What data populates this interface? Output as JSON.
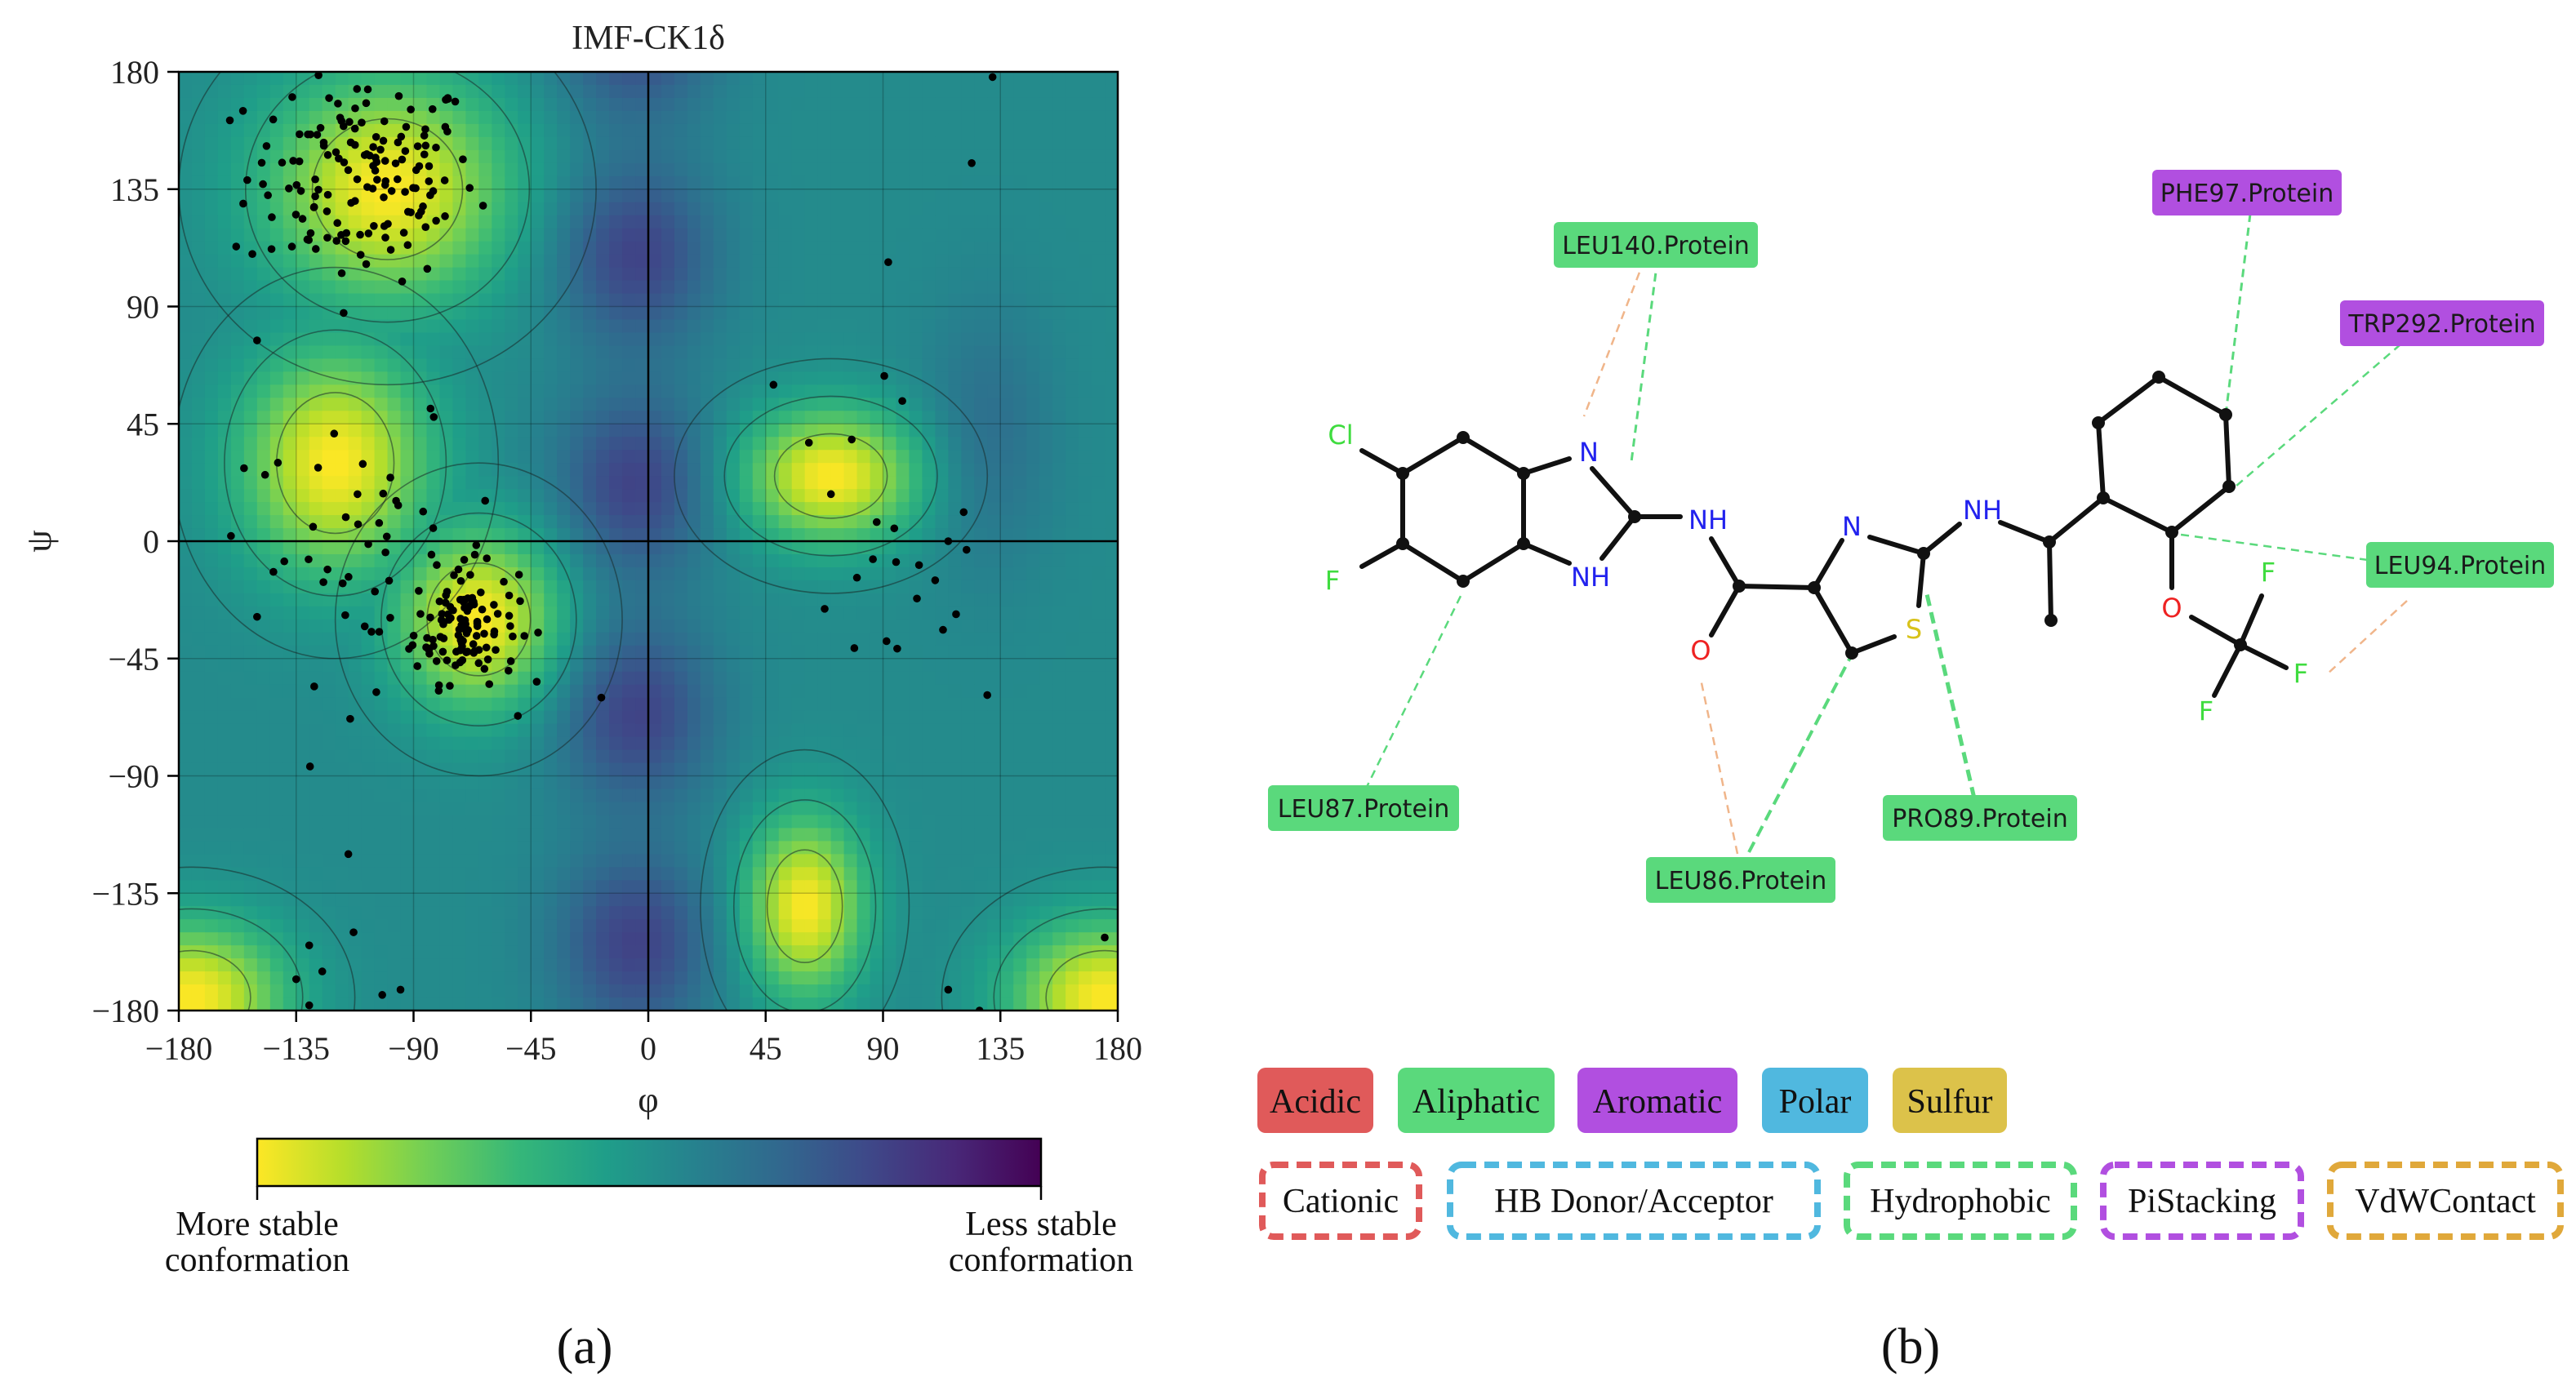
{
  "panel_a": {
    "title": "IMF-CK1δ",
    "caption": "(a)",
    "colorbar": {
      "left_label_line1": "More stable",
      "left_label_line2": "conformation",
      "right_label_line1": "Less stable",
      "right_label_line2": "conformation",
      "colors": [
        "#fde725",
        "#b5de2b",
        "#6ece58",
        "#35b779",
        "#1f9e89",
        "#26828e",
        "#31688e",
        "#3e4989",
        "#482878",
        "#440154"
      ]
    }
  },
  "panel_b": {
    "caption": "(b)",
    "atoms": {
      "cl": "Cl",
      "f_ring": "F",
      "n_imid": "N",
      "nh_imid": "NH",
      "nh_amide": "NH",
      "o_carbonyl": "O",
      "n_thiazole": "N",
      "s_thiazole": "S",
      "nh_amine": "NH",
      "o_ether": "O",
      "f1": "F",
      "f2": "F",
      "f3": "F"
    },
    "residues": {
      "leu140": "LEU140.Protein",
      "phe97": "PHE97.Protein",
      "trp292": "TRP292.Protein",
      "leu94": "LEU94.Protein",
      "leu87": "LEU87.Protein",
      "pro89": "PRO89.Protein",
      "leu86": "LEU86.Protein"
    },
    "legend_residue_types": [
      "Acidic",
      "Aliphatic",
      "Aromatic",
      "Polar",
      "Sulfur"
    ],
    "legend_interaction_types": [
      "Cationic",
      "HB Donor/Acceptor",
      "Hydrophobic",
      "PiStacking",
      "VdWContact"
    ],
    "colors": {
      "acidic": "#e05a5a",
      "aliphatic": "#5ad97c",
      "aromatic": "#b14fe0",
      "polar": "#50b8df",
      "sulfur": "#dcc24a",
      "vdw": "#e0a83a",
      "hbond": "#f0b58a",
      "halogen": "#3fdc3f",
      "nitrogen": "#2222ee",
      "oxygen": "#ee2222",
      "sulfur_atom": "#d8c21a"
    }
  },
  "chart_data": {
    "type": "scatter",
    "title": "IMF-CK1δ",
    "xlabel": "φ",
    "ylabel": "ψ",
    "xlim": [
      -180,
      180
    ],
    "ylim": [
      -180,
      180
    ],
    "xticks": [
      -180,
      -135,
      -90,
      -45,
      0,
      45,
      90,
      135,
      180
    ],
    "yticks": [
      -180,
      -135,
      -90,
      -45,
      0,
      45,
      90,
      135,
      180
    ],
    "xtick_labels": [
      "−180",
      "−135",
      "−90",
      "−45",
      "0",
      "45",
      "90",
      "135",
      "180"
    ],
    "ytick_labels": [
      "−180",
      "−135",
      "−90",
      "−45",
      "0",
      "45",
      "90",
      "135",
      "180"
    ],
    "grid": true,
    "background": "free-energy heatmap (viridis), lower energy = yellow",
    "energy_minima": [
      {
        "phi": -100,
        "psi": 135,
        "sx": 32,
        "sy": 30
      },
      {
        "phi": -65,
        "psi": -30,
        "sx": 22,
        "sy": 24
      },
      {
        "phi": 70,
        "psi": 25,
        "sx": 24,
        "sy": 18
      },
      {
        "phi": 60,
        "psi": -140,
        "sx": 16,
        "sy": 24
      },
      {
        "phi": -120,
        "psi": 30,
        "sx": 25,
        "sy": 30
      },
      {
        "phi": 175,
        "psi": -175,
        "sx": 25,
        "sy": 20
      },
      {
        "phi": -175,
        "psi": -175,
        "sx": 25,
        "sy": 20
      }
    ],
    "clusters": [
      {
        "phi": -110,
        "psi": 140,
        "sphi": 22,
        "spsi": 20,
        "n": 150
      },
      {
        "phi": -70,
        "psi": -32,
        "sphi": 10,
        "spsi": 11,
        "n": 110
      },
      {
        "phi": -105,
        "psi": -5,
        "sphi": 24,
        "spsi": 24,
        "n": 45
      },
      {
        "phi": 85,
        "psi": 5,
        "sphi": 20,
        "spsi": 25,
        "n": 14
      }
    ],
    "points": [
      {
        "phi": -50,
        "psi": -67
      },
      {
        "phi": -18,
        "psi": -60
      },
      {
        "phi": 132,
        "psi": 178
      },
      {
        "phi": 124,
        "psi": 145
      },
      {
        "phi": 92,
        "psi": 107
      },
      {
        "phi": -158,
        "psi": 113
      },
      {
        "phi": -150,
        "psi": 77
      },
      {
        "phi": -155,
        "psi": 28
      },
      {
        "phi": -160,
        "psi": 2
      },
      {
        "phi": -150,
        "psi": -29
      },
      {
        "phi": -115,
        "psi": -120
      },
      {
        "phi": -113,
        "psi": -150
      },
      {
        "phi": -130,
        "psi": -155
      },
      {
        "phi": -125,
        "psi": -165
      },
      {
        "phi": -135,
        "psi": -168
      },
      {
        "phi": -130,
        "psi": -178
      },
      {
        "phi": -95,
        "psi": -172
      },
      {
        "phi": -102,
        "psi": -174
      },
      {
        "phi": 115,
        "psi": -172
      },
      {
        "phi": 127,
        "psi": -180
      },
      {
        "phi": 175,
        "psi": -152
      },
      {
        "phi": 48,
        "psi": 60
      },
      {
        "phi": 78,
        "psi": 39
      },
      {
        "phi": 95,
        "psi": -8
      },
      {
        "phi": 115,
        "psi": 0
      },
      {
        "phi": 110,
        "psi": -15
      },
      {
        "phi": 118,
        "psi": -28
      },
      {
        "phi": 113,
        "psi": -34
      },
      {
        "phi": 80,
        "psi": -14
      },
      {
        "phi": 103,
        "psi": -22
      },
      {
        "phi": 79,
        "psi": -41
      }
    ]
  }
}
